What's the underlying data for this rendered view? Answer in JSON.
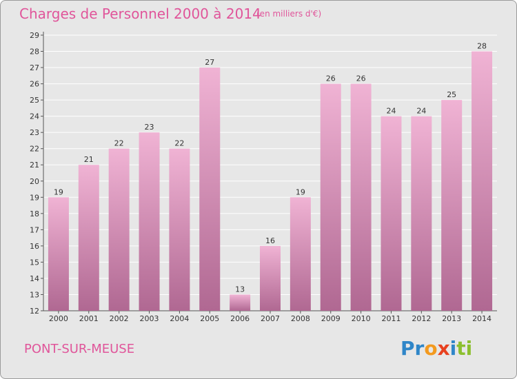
{
  "title": "Charges de Personnel 2000 à 2014",
  "subtitle": "(en milliers d'€)",
  "town": "PONT-SUR-MEUSE",
  "logo": {
    "letters": [
      "P",
      "r",
      "o",
      "x",
      "i",
      "t",
      "i"
    ],
    "colors": [
      "#2f86c8",
      "#2f86c8",
      "#f39a1f",
      "#e8411f",
      "#2f86c8",
      "#8cbf2f",
      "#8cbf2f"
    ]
  },
  "colors": {
    "accent": "#e0559a",
    "bar_light": "#f0b3d4",
    "bar_dark": "#b06892",
    "background": "#e7e7e7"
  },
  "chart_data": {
    "type": "bar",
    "title": "Charges de Personnel 2000 à 2014",
    "subtitle": "(en milliers d'€)",
    "categories": [
      "2000",
      "2001",
      "2002",
      "2003",
      "2004",
      "2005",
      "2006",
      "2007",
      "2008",
      "2009",
      "2010",
      "2011",
      "2012",
      "2013",
      "2014"
    ],
    "values": [
      19,
      21,
      22,
      23,
      22,
      27,
      13,
      16,
      19,
      26,
      26,
      24,
      24,
      25,
      28
    ],
    "ylim": [
      12,
      29
    ],
    "yticks": [
      12,
      13,
      14,
      15,
      16,
      17,
      18,
      19,
      20,
      21,
      22,
      23,
      24,
      25,
      26,
      27,
      28,
      29
    ],
    "grid": true,
    "data_labels": true
  }
}
